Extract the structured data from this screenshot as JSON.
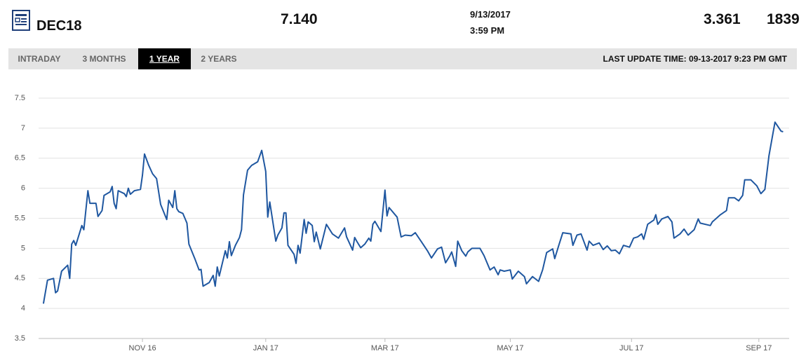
{
  "header": {
    "symbol": "DEC18",
    "price": "7.140",
    "date": "9/13/2017",
    "time": "3:59 PM",
    "change": "3.361",
    "volume": "1839"
  },
  "tabs": [
    "INTRADAY",
    "3 MONTHS",
    "1 YEAR",
    "2 YEARS"
  ],
  "active_tab": 2,
  "last_update": "LAST UPDATE TIME: 09-13-2017 9:23 PM GMT",
  "chart_data": {
    "type": "line",
    "color": "#1f57a0",
    "grid": true,
    "xlim": [
      -2.4,
      369
    ],
    "ylim": [
      3.5,
      7.5
    ],
    "xticks": [
      {
        "value": 49,
        "label": "NOV 16"
      },
      {
        "value": 110,
        "label": "JAN 17"
      },
      {
        "value": 169,
        "label": "MAR 17"
      },
      {
        "value": 231,
        "label": "MAY 17"
      },
      {
        "value": 291,
        "label": "JUL 17"
      },
      {
        "value": 354,
        "label": "SEP 17"
      }
    ],
    "yticks": [
      3.5,
      4,
      4.5,
      5,
      5.5,
      6,
      6.5,
      7,
      7.5
    ],
    "x": [
      0,
      2,
      5,
      6,
      7,
      9,
      12,
      13,
      14,
      15,
      16,
      19,
      20,
      22,
      23,
      26,
      27,
      29,
      30,
      33,
      34,
      35,
      36,
      37,
      40,
      41,
      42,
      43,
      45,
      48,
      49,
      50,
      52,
      54,
      56,
      58,
      61,
      62,
      64,
      65,
      66,
      67,
      69,
      71,
      72,
      75,
      77,
      78,
      79,
      82,
      84,
      85,
      86,
      87,
      90,
      91,
      92,
      93,
      95,
      97,
      98,
      99,
      101,
      103,
      106,
      108,
      110,
      111,
      112,
      115,
      116,
      118,
      119,
      120,
      121,
      124,
      125,
      126,
      127,
      129,
      130,
      131,
      133,
      134,
      135,
      137,
      140,
      143,
      146,
      149,
      150,
      153,
      154,
      155,
      157,
      159,
      161,
      162,
      163,
      164,
      167,
      169,
      170,
      171,
      175,
      177,
      179,
      182,
      184,
      187,
      190,
      192,
      195,
      197,
      199,
      201,
      202,
      204,
      205,
      207,
      209,
      210,
      212,
      216,
      218,
      221,
      223,
      225,
      226,
      228,
      231,
      232,
      235,
      238,
      239,
      242,
      245,
      247,
      249,
      252,
      253,
      255,
      257,
      261,
      262,
      264,
      266,
      269,
      270,
      272,
      275,
      277,
      279,
      281,
      283,
      285,
      287,
      290,
      292,
      294,
      296,
      297,
      299,
      302,
      303,
      304,
      306,
      309,
      311,
      312,
      315,
      317,
      319,
      322,
      324,
      325,
      330,
      331,
      335,
      338,
      339,
      342,
      344,
      346,
      347,
      350,
      353,
      355,
      357,
      359,
      361,
      362,
      365,
      366
    ],
    "values": [
      4.08,
      4.47,
      4.5,
      4.26,
      4.29,
      4.62,
      4.72,
      4.5,
      5.07,
      5.13,
      5.05,
      5.38,
      5.31,
      5.96,
      5.75,
      5.75,
      5.53,
      5.63,
      5.88,
      5.94,
      6.03,
      5.75,
      5.66,
      5.96,
      5.91,
      5.86,
      6.0,
      5.9,
      5.96,
      5.98,
      6.22,
      6.57,
      6.39,
      6.24,
      6.16,
      5.73,
      5.48,
      5.8,
      5.68,
      5.96,
      5.66,
      5.61,
      5.58,
      5.42,
      5.07,
      4.82,
      4.64,
      4.65,
      4.37,
      4.43,
      4.55,
      4.37,
      4.69,
      4.54,
      4.96,
      4.84,
      5.11,
      4.88,
      5.05,
      5.18,
      5.31,
      5.89,
      6.3,
      6.38,
      6.44,
      6.63,
      6.28,
      5.52,
      5.77,
      5.12,
      5.22,
      5.34,
      5.59,
      5.59,
      5.05,
      4.9,
      4.75,
      5.05,
      4.92,
      5.48,
      5.25,
      5.44,
      5.38,
      5.11,
      5.27,
      4.99,
      5.4,
      5.24,
      5.17,
      5.34,
      5.19,
      4.97,
      5.18,
      5.12,
      5.01,
      5.07,
      5.17,
      5.12,
      5.4,
      5.45,
      5.28,
      5.97,
      5.54,
      5.68,
      5.52,
      5.19,
      5.22,
      5.21,
      5.26,
      5.11,
      4.96,
      4.84,
      4.99,
      5.02,
      4.76,
      4.87,
      4.94,
      4.7,
      5.12,
      4.96,
      4.87,
      4.94,
      5.0,
      5.0,
      4.88,
      4.64,
      4.69,
      4.56,
      4.64,
      4.62,
      4.64,
      4.49,
      4.62,
      4.53,
      4.41,
      4.53,
      4.45,
      4.64,
      4.93,
      4.99,
      4.83,
      5.05,
      5.26,
      5.24,
      5.05,
      5.22,
      5.24,
      4.97,
      5.12,
      5.05,
      5.09,
      4.98,
      5.04,
      4.96,
      4.97,
      4.91,
      5.05,
      5.02,
      5.17,
      5.19,
      5.24,
      5.15,
      5.4,
      5.47,
      5.56,
      5.4,
      5.49,
      5.53,
      5.44,
      5.17,
      5.24,
      5.32,
      5.22,
      5.31,
      5.49,
      5.42,
      5.38,
      5.44,
      5.56,
      5.63,
      5.84,
      5.84,
      5.79,
      5.88,
      6.14,
      6.14,
      6.04,
      5.91,
      5.98,
      6.54,
      6.92,
      7.1,
      6.95,
      6.94
    ]
  }
}
